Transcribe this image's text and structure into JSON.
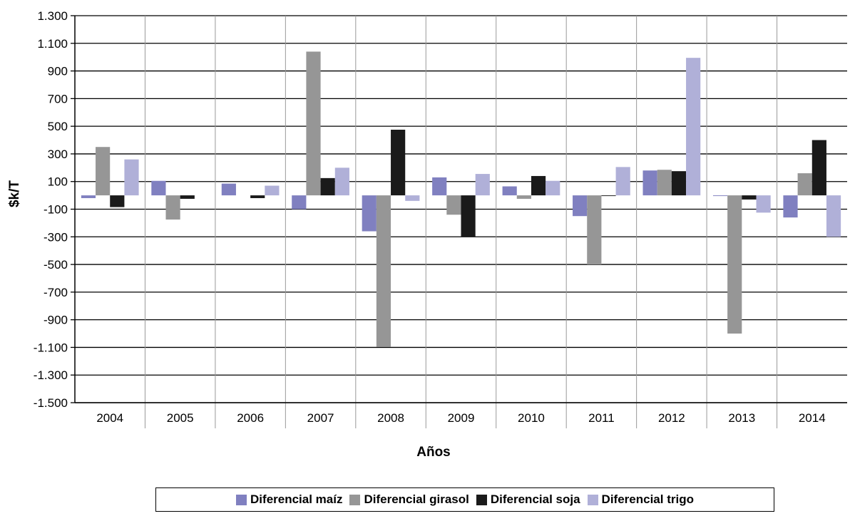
{
  "chart_data": {
    "type": "bar",
    "title": "",
    "xlabel": "Años",
    "ylabel": "$k/T",
    "categories": [
      "2004",
      "2005",
      "2006",
      "2007",
      "2008",
      "2009",
      "2010",
      "2011",
      "2012",
      "2013",
      "2014"
    ],
    "ylim": [
      -1500,
      1300
    ],
    "yticks": [
      1300,
      1100,
      900,
      700,
      500,
      300,
      100,
      -100,
      -300,
      -500,
      -700,
      -900,
      -1100,
      -1300,
      -1500
    ],
    "ytick_labels": [
      "1.300",
      "1.100",
      "900",
      "700",
      "500",
      "300",
      "100",
      "-100",
      "-300",
      "-500",
      "-700",
      "-900",
      "-1.100",
      "-1.300",
      "-1.500"
    ],
    "grid": true,
    "legend_position": "bottom",
    "series": [
      {
        "name": "Diferencial maíz",
        "color": "#8080c0",
        "values": [
          -20,
          105,
          85,
          -100,
          -260,
          130,
          65,
          -150,
          180,
          -5,
          -160
        ]
      },
      {
        "name": "Diferencial girasol",
        "color": "#969696",
        "values": [
          350,
          -175,
          0,
          1040,
          -1095,
          -140,
          -25,
          -500,
          185,
          -1000,
          160
        ]
      },
      {
        "name": "Diferencial soja",
        "color": "#1a1a1a",
        "values": [
          -85,
          -25,
          -20,
          125,
          475,
          -300,
          140,
          -5,
          175,
          -30,
          400
        ]
      },
      {
        "name": "Diferencial trigo",
        "color": "#b0b0d8",
        "values": [
          260,
          0,
          70,
          200,
          -40,
          155,
          105,
          205,
          995,
          -125,
          -300
        ]
      }
    ]
  }
}
